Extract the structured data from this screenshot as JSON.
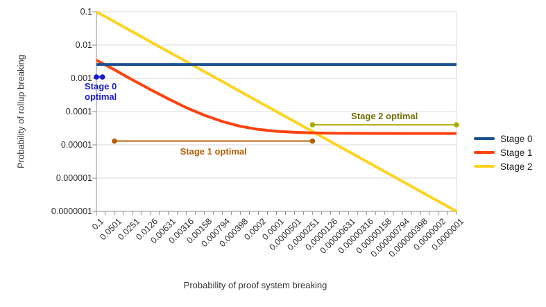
{
  "chart_data": {
    "type": "line",
    "title": "",
    "xlabel": "Probability of proof system breaking",
    "ylabel": "Probability of rollup breaking",
    "x_scale": "log",
    "y_scale": "log",
    "xlim": [
      0.1,
      1e-07
    ],
    "ylim": [
      0.1,
      1e-07
    ],
    "grid": "horizontal",
    "legend_position": "right",
    "x_tick_labels": [
      "0.1",
      "0.0501",
      "0.0251",
      "0.0126",
      "0.00631",
      "0.00316",
      "0.00158",
      "0.000794",
      "0.000398",
      "0.0002",
      "0.0001",
      "0.0000501",
      "0.0000251",
      "0.0000126",
      "0.00000631",
      "0.00000316",
      "0.00000158",
      "0.000000794",
      "0.000000398",
      "0.0000002",
      "0.0000001"
    ],
    "y_tick_labels": [
      "0.1",
      "0.01",
      "0.001",
      "0.0001",
      "0.00001",
      "0.000001",
      "0.0000001"
    ],
    "x": [
      0.1,
      0.0501,
      0.0251,
      0.0126,
      0.00631,
      0.00316,
      0.00158,
      0.000794,
      0.000398,
      0.0002,
      0.0001,
      5.01e-05,
      2.51e-05,
      1.26e-05,
      6.31e-06,
      3.16e-06,
      1.58e-06,
      7.94e-07,
      3.98e-07,
      2e-07,
      1e-07
    ],
    "series": [
      {
        "name": "Stage 0",
        "color": "#1c5090",
        "values": [
          0.0026,
          0.0026,
          0.0026,
          0.0026,
          0.0026,
          0.0026,
          0.0026,
          0.0026,
          0.0026,
          0.0026,
          0.0026,
          0.0026,
          0.0026,
          0.0026,
          0.0026,
          0.0026,
          0.0026,
          0.0026,
          0.0026,
          0.0026,
          0.0026
        ]
      },
      {
        "name": "Stage 1",
        "color": "#ff420e",
        "values": [
          0.0035,
          0.0018,
          0.0009,
          0.00046,
          0.00024,
          0.00013,
          7.7e-05,
          5e-05,
          3.6e-05,
          2.9e-05,
          2.55e-05,
          2.38e-05,
          2.29e-05,
          2.24e-05,
          2.22e-05,
          2.21e-05,
          2.21e-05,
          2.2e-05,
          2.2e-05,
          2.2e-05,
          2.2e-05
        ]
      },
      {
        "name": "Stage 2",
        "color": "#ffd320",
        "values": [
          0.1,
          0.0501,
          0.0251,
          0.0126,
          0.00631,
          0.00316,
          0.00158,
          0.000794,
          0.000398,
          0.0002,
          0.0001,
          5.01e-05,
          2.51e-05,
          1.26e-05,
          6.31e-06,
          3.16e-06,
          1.58e-06,
          7.94e-07,
          3.98e-07,
          2e-07,
          1e-07
        ]
      }
    ],
    "annotations": [
      {
        "label": "Stage 0 optimal",
        "label_lines": [
          "Stage 0",
          "optimal"
        ],
        "x_from": 0.1,
        "x_to": 0.0794,
        "y": 0.0011,
        "line_color": "#1a1ad1",
        "text_color": "#1a1ad1",
        "label_placement": "below-left"
      },
      {
        "label": "Stage 1 optimal",
        "label_lines": [
          "Stage 1 optimal"
        ],
        "x_from": 0.0501,
        "x_to": 2.51e-05,
        "y": 1.3e-05,
        "line_color": "#b45f06",
        "text_color": "#b45f06",
        "label_placement": "below-center"
      },
      {
        "label": "Stage 2 optimal",
        "label_lines": [
          "Stage 2 optimal"
        ],
        "x_from": 2.51e-05,
        "x_to": 1e-07,
        "y": 4e-05,
        "line_color": "#acac00",
        "text_color": "#6e6e00",
        "label_placement": "above-center"
      }
    ]
  }
}
